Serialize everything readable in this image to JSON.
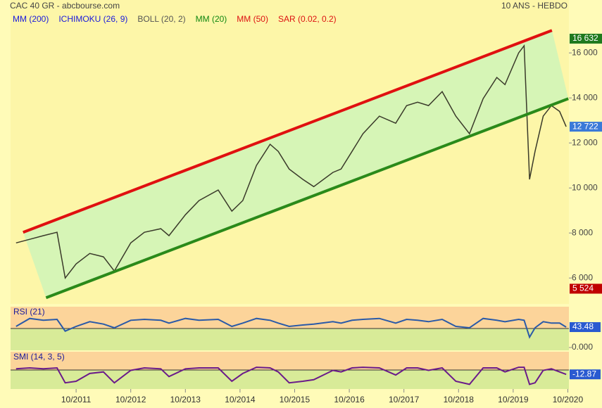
{
  "chart_data": [
    {
      "type": "line",
      "title": "CAC 40 GR - abcbourse.com",
      "subtitle": "10 ANS - HEBDO",
      "indicators": [
        {
          "label": "MM (200)",
          "color": "#1a1adc"
        },
        {
          "label": "ICHIMOKU (26, 9)",
          "color": "#1a1adc"
        },
        {
          "label": "BOLL (20, 2)",
          "color": "#555555"
        },
        {
          "label": "MM (20)",
          "color": "#118811"
        },
        {
          "label": "MM (50)",
          "color": "#dd1111"
        },
        {
          "label": "SAR (0.02, 0.2)",
          "color": "#dd1111"
        }
      ],
      "x": [
        2010.65,
        2010.9,
        2011.15,
        2011.4,
        2011.55,
        2011.75,
        2012.0,
        2012.25,
        2012.45,
        2012.75,
        2013.0,
        2013.3,
        2013.45,
        2013.75,
        2014.0,
        2014.35,
        2014.6,
        2014.8,
        2015.05,
        2015.3,
        2015.45,
        2015.65,
        2015.9,
        2016.1,
        2016.45,
        2016.6,
        2016.8,
        2017.0,
        2017.3,
        2017.6,
        2017.8,
        2018.0,
        2018.2,
        2018.45,
        2018.7,
        2018.95,
        2019.2,
        2019.45,
        2019.6,
        2019.85,
        2019.95,
        2020.05,
        2020.15,
        2020.3,
        2020.45,
        2020.6,
        2020.72
      ],
      "series": [
        {
          "color": "#3a3a2a",
          "values": [
            7560,
            7720,
            7880,
            8030,
            6000,
            6625,
            7090,
            6940,
            6310,
            7560,
            8030,
            8190,
            7880,
            8810,
            9440,
            9910,
            8970,
            9440,
            11000,
            11940,
            11625,
            10840,
            10380,
            10060,
            10690,
            10840,
            11625,
            12410,
            13190,
            12875,
            13660,
            13810,
            13660,
            14280,
            13190,
            12410,
            13970,
            14910,
            14590,
            16000,
            16320,
            10380,
            11625,
            13190,
            13660,
            13400,
            12722
          ]
        }
      ],
      "trendlines": [
        {
          "color": "#e01010",
          "x": [
            2010.78,
            2020.46
          ],
          "values": [
            8031,
            17000
          ]
        },
        {
          "color": "#2a8a1a",
          "x": [
            2011.2,
            2020.76
          ],
          "values": [
            5125,
            13969
          ]
        }
      ],
      "markers": [
        {
          "value": 16632,
          "label": "16 632",
          "color": "#1e7a1e"
        },
        {
          "value": 12722,
          "label": "12 722",
          "color": "#3a7ad8"
        },
        {
          "value": 5524,
          "label": "5 524",
          "color": "#c00000"
        }
      ],
      "xlim": [
        2010.55,
        2020.77
      ],
      "xticks": [
        {
          "value": 2011.75,
          "label": "10/2011"
        },
        {
          "value": 2012.75,
          "label": "10/2012"
        },
        {
          "value": 2013.75,
          "label": "10/2013"
        },
        {
          "value": 2014.75,
          "label": "10/2014"
        },
        {
          "value": 2015.75,
          "label": "10/2015"
        },
        {
          "value": 2016.75,
          "label": "10/2016"
        },
        {
          "value": 2017.75,
          "label": "10/2017"
        },
        {
          "value": 2018.75,
          "label": "10/2018"
        },
        {
          "value": 2019.75,
          "label": "10/2019"
        },
        {
          "value": 2020.75,
          "label": "10/2020"
        }
      ],
      "ylim": [
        4850,
        18350
      ],
      "yticks": [
        {
          "value": 6000,
          "label": "6 000"
        },
        {
          "value": 8000,
          "label": "8 000"
        },
        {
          "value": 10000,
          "label": "10 000"
        },
        {
          "value": 12000,
          "label": "12 000"
        },
        {
          "value": 14000,
          "label": "14 000"
        },
        {
          "value": 16000,
          "label": "16 000"
        }
      ]
    },
    {
      "type": "line",
      "title": "RSI (21)",
      "x": [
        2010.65,
        2010.9,
        2011.15,
        2011.4,
        2011.55,
        2011.75,
        2012.0,
        2012.25,
        2012.45,
        2012.75,
        2013.0,
        2013.3,
        2013.45,
        2013.75,
        2014.0,
        2014.35,
        2014.6,
        2014.8,
        2015.05,
        2015.3,
        2015.45,
        2015.65,
        2015.9,
        2016.1,
        2016.45,
        2016.6,
        2016.8,
        2017.0,
        2017.3,
        2017.6,
        2017.8,
        2018.0,
        2018.2,
        2018.45,
        2018.7,
        2018.95,
        2019.2,
        2019.45,
        2019.6,
        2019.85,
        2019.95,
        2020.05,
        2020.15,
        2020.3,
        2020.45,
        2020.6,
        2020.72
      ],
      "series": [
        {
          "color": "#2a5aa8",
          "values": [
            45,
            62,
            58,
            60,
            35,
            45,
            55,
            50,
            42,
            58,
            60,
            58,
            52,
            62,
            58,
            60,
            45,
            52,
            62,
            58,
            52,
            45,
            48,
            50,
            55,
            52,
            58,
            60,
            62,
            52,
            60,
            58,
            55,
            60,
            45,
            42,
            62,
            58,
            55,
            60,
            58,
            22,
            42,
            55,
            52,
            52,
            43.48
          ]
        }
      ],
      "xlim": [
        2010.55,
        2020.77
      ],
      "ylim": [
        -6,
        87
      ],
      "yticks": [
        {
          "value": 0,
          "label": "0.000"
        }
      ]
    },
    {
      "type": "line",
      "title": "SMI (14, 3, 5)",
      "x": [
        2010.65,
        2010.9,
        2011.15,
        2011.4,
        2011.55,
        2011.75,
        2012.0,
        2012.25,
        2012.45,
        2012.75,
        2013.0,
        2013.3,
        2013.45,
        2013.75,
        2014.0,
        2014.35,
        2014.6,
        2014.8,
        2015.05,
        2015.3,
        2015.45,
        2015.65,
        2015.9,
        2016.1,
        2016.45,
        2016.6,
        2016.8,
        2017.0,
        2017.3,
        2017.6,
        2017.8,
        2018.0,
        2018.2,
        2018.45,
        2018.7,
        2018.95,
        2019.2,
        2019.45,
        2019.6,
        2019.85,
        2019.95,
        2020.05,
        2020.15,
        2020.3,
        2020.45,
        2020.6,
        2020.72
      ],
      "series": [
        {
          "color": "#6a1a8a",
          "values": [
            5,
            8,
            5,
            8,
            -40,
            -35,
            -10,
            -5,
            -40,
            0,
            8,
            5,
            -20,
            5,
            8,
            8,
            -35,
            -10,
            10,
            8,
            -5,
            -40,
            -35,
            -30,
            0,
            -5,
            8,
            10,
            8,
            -15,
            8,
            8,
            0,
            8,
            -35,
            -45,
            8,
            8,
            -5,
            10,
            10,
            -45,
            -40,
            0,
            5,
            -5,
            -12.87
          ]
        }
      ],
      "xlim": [
        2010.55,
        2020.77
      ],
      "ylim": [
        -60,
        60
      ]
    }
  ]
}
